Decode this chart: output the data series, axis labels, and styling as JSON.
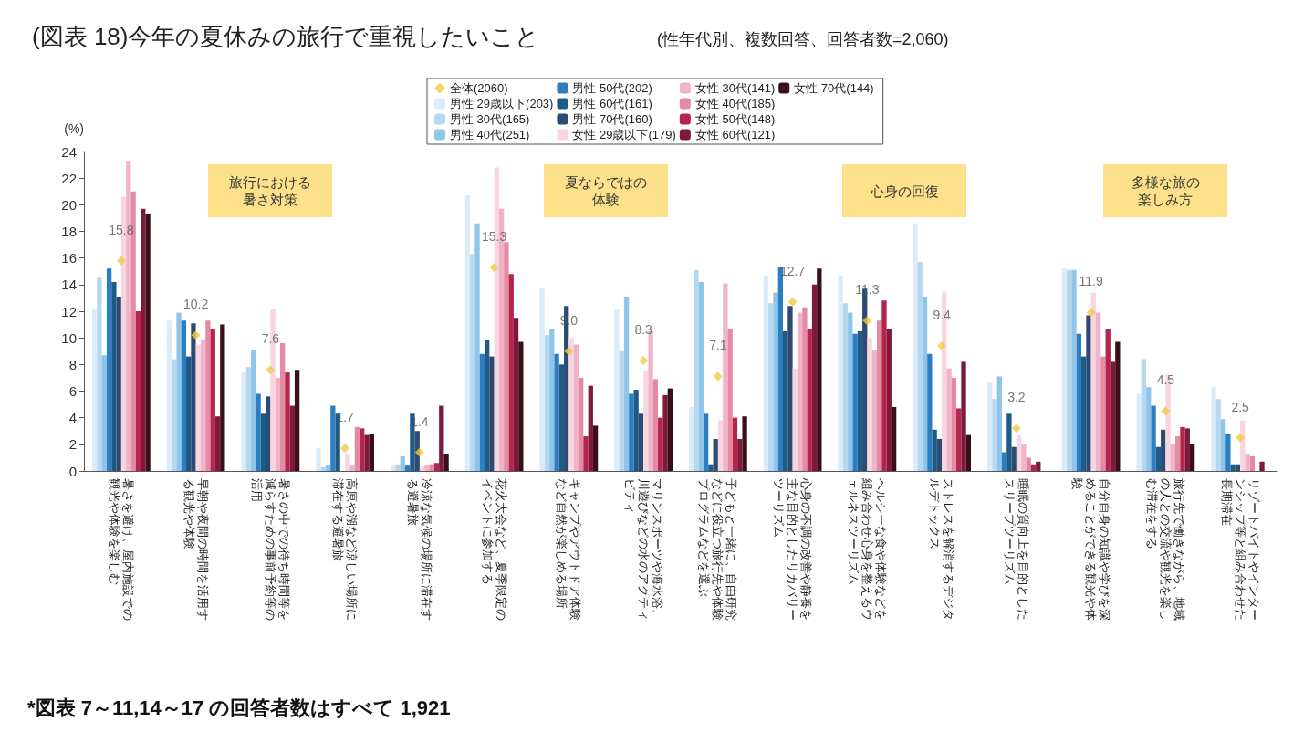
{
  "chart_data": {
    "type": "bar",
    "title": "(図表 18)今年の夏休みの旅行で重視したいこと",
    "subtitle": "(性年代別、複数回答、回答者数=2,060)",
    "ylabel": "(%)",
    "categories": [
      "暑さを避け、屋内施設での観光や体験を楽しむ",
      "早朝や夜間の時間を活用する観光や体験",
      "暑さの中での待ち時間等を減らすための事前予約等の活用",
      "高原や湖など涼しい場所に滞在する避暑旅",
      "冷涼な気候の場所に滞在する避暑旅",
      "花火大会など、夏季限定のイベントに参加する",
      "キャンプやアウトドア体験など自然が楽しめる場所",
      "マリンスポーツや海水浴、川遊びなどの水のアクティビティ",
      "子どもと一緒に、自由研究などに役立つ旅行先や体験プログラムなどを選ぶ",
      "心身の不調の改善や静養を主な目的としたリカバリーツーリズム",
      "ヘルシーな食や体験などを組み合わせ心身を整えるウェルネスツーリズム",
      "ストレスを解消するデジタルデトックス",
      "睡眠の質向上を目的としたスリープツーリズム",
      "自分自身の知識や学びを深めることができる観光や体験",
      "旅行先で働きながら、地域の人との交流や観光を楽しむ滞在をする",
      "リゾートバイトやインターンシップ等と組み合わせた長期滞在"
    ],
    "series": [
      {
        "name": "全体(2060)",
        "type": "scatter",
        "marker": "diamond",
        "color": "#f5c842",
        "values": [
          15.8,
          10.2,
          7.6,
          1.7,
          1.4,
          15.3,
          9.0,
          8.3,
          7.1,
          12.7,
          11.3,
          9.4,
          3.2,
          11.9,
          4.5,
          2.5
        ],
        "value_labels": [
          "15.8",
          "10.2",
          "7.6",
          "1.7",
          "1.4",
          "15.3",
          "9.0",
          "8.3",
          "7.1",
          "12.7",
          "11.3",
          "9.4",
          "3.2",
          "11.9",
          "4.5",
          "2.5"
        ]
      },
      {
        "name": "男性 29歳以下(203)",
        "color": "#dcebf7",
        "values": [
          12.2,
          11.3,
          7.4,
          1.7,
          0.4,
          20.7,
          13.7,
          12.2,
          4.8,
          14.7,
          14.7,
          18.6,
          6.7,
          15.2,
          5.8,
          6.3
        ]
      },
      {
        "name": "男性 30代(165)",
        "color": "#b5d8f0",
        "values": [
          14.5,
          8.4,
          7.8,
          0.3,
          0.5,
          16.3,
          10.2,
          9.0,
          15.1,
          12.6,
          12.6,
          15.7,
          5.4,
          15.1,
          8.4,
          5.4
        ]
      },
      {
        "name": "男性 40代(251)",
        "color": "#8ec5e8",
        "values": [
          8.7,
          11.9,
          9.1,
          0.4,
          1.1,
          18.6,
          10.7,
          13.1,
          14.2,
          13.4,
          11.9,
          13.1,
          7.1,
          15.1,
          6.3,
          3.9
        ]
      },
      {
        "name": "男性 50代(202)",
        "color": "#2b7fc0",
        "values": [
          15.2,
          11.3,
          5.8,
          4.9,
          0.4,
          8.8,
          8.8,
          5.8,
          4.3,
          15.3,
          10.3,
          8.8,
          1.4,
          10.3,
          4.9,
          2.8
        ]
      },
      {
        "name": "男性 60代(161)",
        "color": "#1e5a86",
        "values": [
          14.2,
          8.6,
          4.3,
          4.3,
          4.3,
          9.8,
          8.0,
          6.1,
          0.5,
          10.5,
          10.5,
          3.1,
          4.3,
          8.6,
          1.8,
          0.5
        ]
      },
      {
        "name": "男性 70代(160)",
        "color": "#2c4a72",
        "values": [
          13.1,
          11.1,
          5.6,
          0,
          3.0,
          8.6,
          12.4,
          4.3,
          2.4,
          12.4,
          13.7,
          2.4,
          1.8,
          11.7,
          3.1,
          0.5
        ]
      },
      {
        "name": "女性 29歳以下(179)",
        "color": "#f7d6e2",
        "values": [
          20.6,
          9.5,
          12.2,
          1.3,
          0.3,
          22.8,
          10.0,
          7.5,
          3.8,
          7.7,
          10.0,
          13.4,
          2.7,
          13.4,
          7.2,
          3.8
        ]
      },
      {
        "name": "女性 30代(141)",
        "color": "#f0b3c8",
        "values": [
          23.3,
          9.9,
          7.0,
          0.4,
          0.4,
          19.7,
          9.5,
          10.5,
          14.1,
          11.9,
          9.1,
          7.7,
          2.0,
          11.9,
          2.0,
          1.3
        ]
      },
      {
        "name": "女性 40代(185)",
        "color": "#e58aa5",
        "values": [
          21.0,
          11.3,
          9.6,
          3.3,
          0.5,
          17.2,
          7.0,
          6.9,
          10.7,
          12.3,
          11.3,
          7.0,
          1.0,
          8.6,
          2.6,
          1.1
        ]
      },
      {
        "name": "女性 50代(148)",
        "color": "#b5234f",
        "values": [
          12.0,
          10.7,
          7.4,
          3.2,
          0.6,
          14.8,
          2.6,
          4.0,
          4.0,
          10.7,
          12.8,
          4.7,
          0.5,
          10.7,
          3.3,
          0
        ]
      },
      {
        "name": "女性 60代(121)",
        "color": "#7d1a3c",
        "values": [
          19.7,
          4.1,
          4.9,
          2.7,
          4.9,
          11.5,
          6.4,
          5.7,
          2.4,
          14.0,
          10.7,
          8.2,
          0.7,
          8.2,
          3.2,
          0.7
        ]
      },
      {
        "name": "女性 70代(144)",
        "color": "#3a1018",
        "values": [
          19.3,
          11.0,
          7.6,
          2.8,
          1.3,
          9.7,
          3.4,
          6.2,
          4.1,
          15.2,
          4.8,
          2.7,
          0,
          9.7,
          2.0,
          0
        ]
      }
    ],
    "ylim": [
      0,
      24
    ],
    "yticks": [
      0,
      2,
      4,
      6,
      8,
      10,
      12,
      14,
      16,
      18,
      20,
      22,
      24
    ],
    "grid": false,
    "legend": "top right",
    "annotations": [
      "旅行における暑さ対策",
      "夏ならではの体験",
      "心身の回復",
      "多様な旅の楽しみ方",
      "*図表 7～11,14～17 の回答者数はすべて 1,921"
    ]
  }
}
